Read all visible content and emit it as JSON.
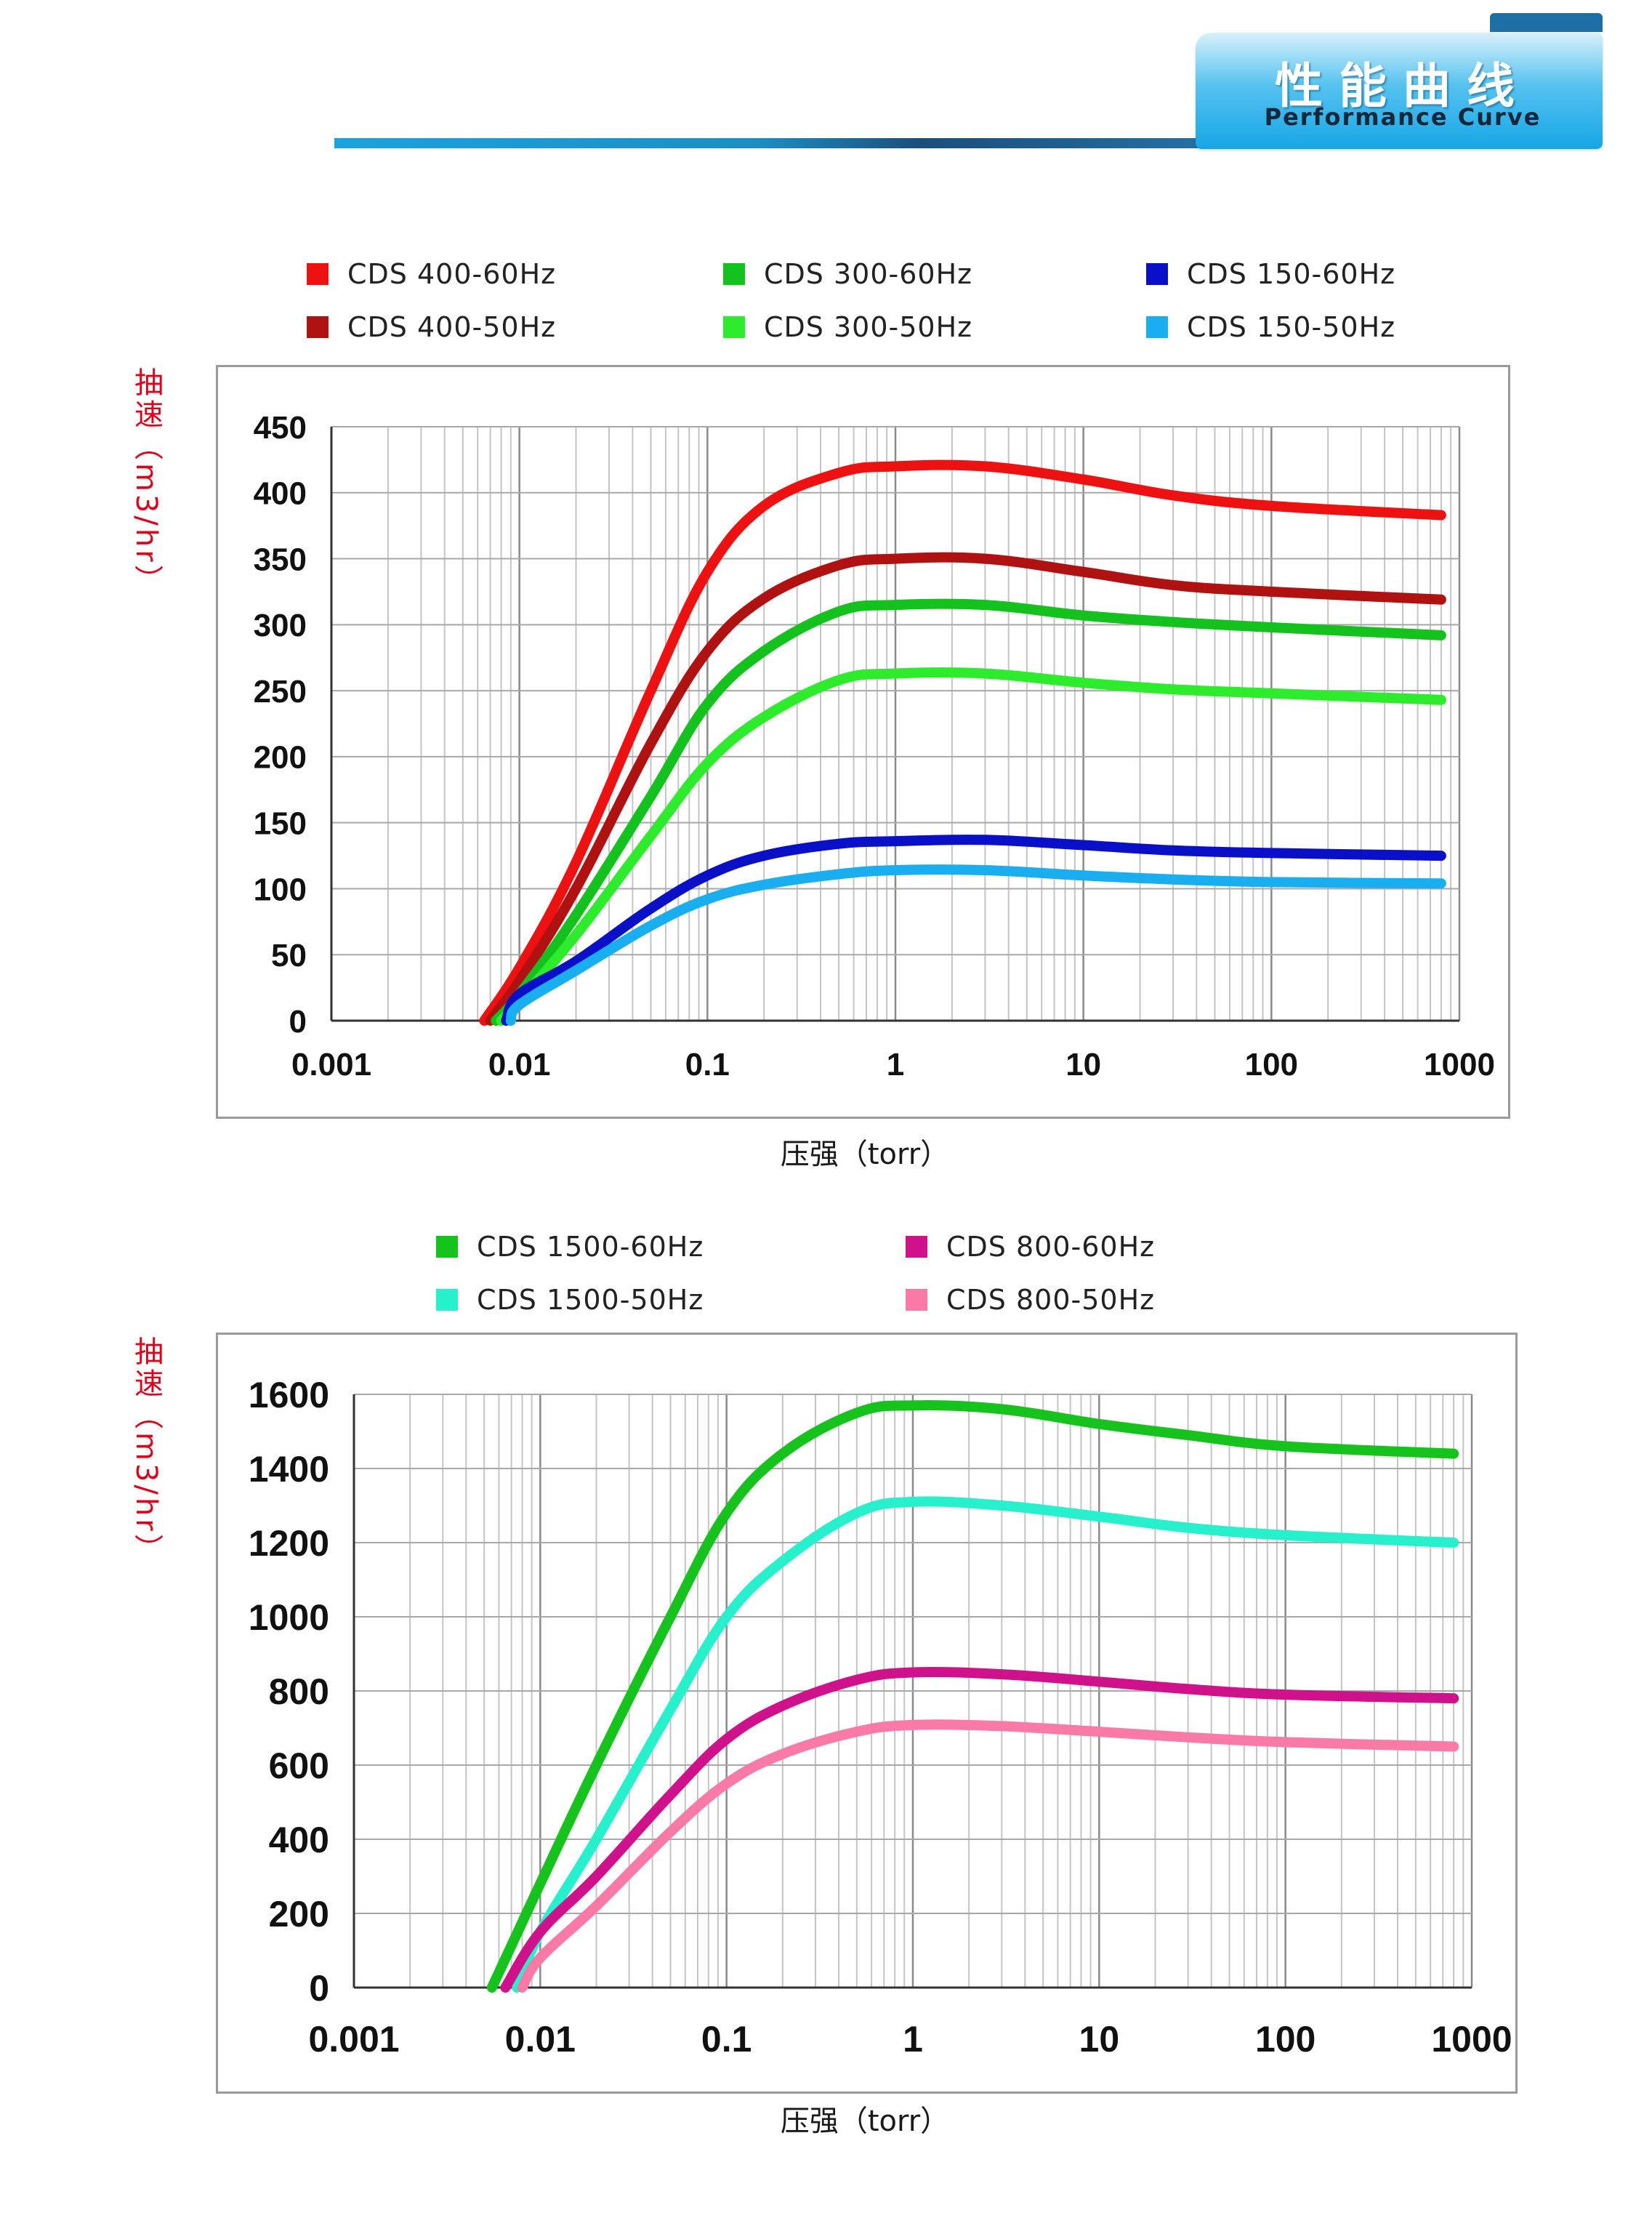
{
  "header": {
    "title_cn": "性能曲线",
    "title_en": "Performance Curve"
  },
  "chart_data": [
    {
      "type": "line",
      "xscale": "log",
      "xlim": [
        0.001,
        1000
      ],
      "ylim": [
        0,
        450
      ],
      "x_ticks": [
        0.001,
        0.01,
        0.1,
        1,
        10,
        100,
        1000
      ],
      "x_tick_labels": [
        "0.001",
        "0.01",
        "0.1",
        "1",
        "10",
        "100",
        "1000"
      ],
      "y_ticks": [
        0,
        50,
        100,
        150,
        200,
        250,
        300,
        350,
        400,
        450
      ],
      "y_tick_labels": [
        "0",
        "50",
        "100",
        "150",
        "200",
        "250",
        "300",
        "350",
        "400",
        "450"
      ],
      "xlabel": "压强（torr）",
      "ylabel": "抽速（m3/hr）",
      "grid": true,
      "legend_position": "top",
      "series": [
        {
          "name": "CDS 400-60Hz",
          "color": "#ee1111",
          "x": [
            0.0065,
            0.01,
            0.02,
            0.05,
            0.1,
            0.2,
            0.5,
            1,
            3,
            10,
            30,
            100,
            800
          ],
          "y": [
            0,
            40,
            120,
            250,
            340,
            390,
            415,
            420,
            420,
            410,
            398,
            390,
            383
          ]
        },
        {
          "name": "CDS 400-50Hz",
          "color": "#b01212",
          "x": [
            0.007,
            0.01,
            0.02,
            0.05,
            0.1,
            0.2,
            0.5,
            1,
            3,
            10,
            30,
            100,
            800
          ],
          "y": [
            0,
            30,
            100,
            210,
            280,
            320,
            345,
            350,
            350,
            340,
            330,
            325,
            319
          ]
        },
        {
          "name": "CDS 300-60Hz",
          "color": "#14c21e",
          "x": [
            0.0075,
            0.01,
            0.02,
            0.05,
            0.1,
            0.2,
            0.5,
            1,
            3,
            10,
            30,
            100,
            800
          ],
          "y": [
            0,
            20,
            80,
            170,
            240,
            280,
            310,
            315,
            315,
            307,
            302,
            298,
            292
          ]
        },
        {
          "name": "CDS 300-50Hz",
          "color": "#2cec2c",
          "x": [
            0.008,
            0.01,
            0.02,
            0.05,
            0.1,
            0.2,
            0.5,
            1,
            3,
            10,
            30,
            100,
            800
          ],
          "y": [
            0,
            15,
            65,
            140,
            195,
            230,
            258,
            263,
            263,
            256,
            251,
            248,
            243
          ]
        },
        {
          "name": "CDS 150-60Hz",
          "color": "#0a10c8",
          "x": [
            0.0085,
            0.01,
            0.02,
            0.05,
            0.1,
            0.2,
            0.5,
            1,
            3,
            10,
            30,
            100,
            800
          ],
          "y": [
            0,
            20,
            45,
            85,
            110,
            125,
            134,
            136,
            137,
            133,
            129,
            127,
            125
          ]
        },
        {
          "name": "CDS 150-50Hz",
          "color": "#18aef0",
          "x": [
            0.009,
            0.01,
            0.02,
            0.05,
            0.1,
            0.2,
            0.5,
            1,
            3,
            10,
            30,
            100,
            800
          ],
          "y": [
            0,
            12,
            38,
            72,
            92,
            103,
            111,
            114,
            114,
            110,
            107,
            105,
            104
          ]
        }
      ]
    },
    {
      "type": "line",
      "xscale": "log",
      "xlim": [
        0.001,
        1000
      ],
      "ylim": [
        0,
        1600
      ],
      "x_ticks": [
        0.001,
        0.01,
        0.1,
        1,
        10,
        100,
        1000
      ],
      "x_tick_labels": [
        "0.001",
        "0.01",
        "0.1",
        "1",
        "10",
        "100",
        "1000"
      ],
      "y_ticks": [
        0,
        200,
        400,
        600,
        800,
        1000,
        1200,
        1400,
        1600
      ],
      "y_tick_labels": [
        "0",
        "200",
        "400",
        "600",
        "800",
        "1000",
        "1200",
        "1400",
        "1600"
      ],
      "xlabel": "压强（torr）",
      "ylabel": "抽速（m3/hr）",
      "grid": true,
      "legend_position": "top",
      "series": [
        {
          "name": "CDS 1500-60Hz",
          "color": "#16c21c",
          "x": [
            0.0055,
            0.01,
            0.02,
            0.05,
            0.1,
            0.2,
            0.5,
            1,
            3,
            10,
            30,
            100,
            800
          ],
          "y": [
            0,
            280,
            600,
            1000,
            1280,
            1440,
            1550,
            1570,
            1560,
            1520,
            1490,
            1460,
            1440
          ]
        },
        {
          "name": "CDS 1500-50Hz",
          "color": "#27f0cc",
          "x": [
            0.0075,
            0.01,
            0.02,
            0.05,
            0.1,
            0.2,
            0.5,
            1,
            3,
            10,
            30,
            100,
            800
          ],
          "y": [
            0,
            150,
            400,
            750,
            1000,
            1150,
            1280,
            1310,
            1300,
            1270,
            1240,
            1220,
            1200
          ]
        },
        {
          "name": "CDS 800-60Hz",
          "color": "#cf118c",
          "x": [
            0.0065,
            0.01,
            0.02,
            0.05,
            0.1,
            0.2,
            0.5,
            1,
            3,
            10,
            30,
            100,
            800
          ],
          "y": [
            0,
            150,
            300,
            520,
            670,
            760,
            830,
            850,
            845,
            825,
            805,
            790,
            780
          ]
        },
        {
          "name": "CDS 800-50Hz",
          "color": "#f97aa6",
          "x": [
            0.008,
            0.01,
            0.02,
            0.05,
            0.1,
            0.2,
            0.5,
            1,
            3,
            10,
            30,
            100,
            800
          ],
          "y": [
            0,
            80,
            220,
            420,
            550,
            630,
            690,
            708,
            705,
            690,
            675,
            662,
            650
          ]
        }
      ]
    }
  ]
}
